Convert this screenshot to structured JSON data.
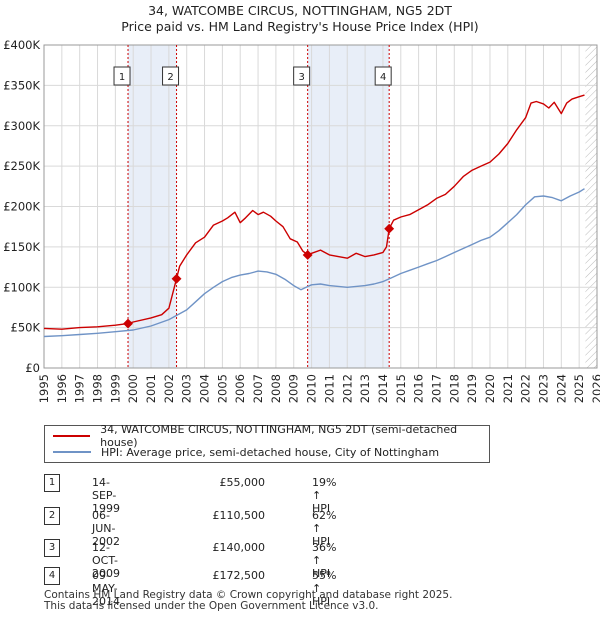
{
  "title": "34, WATCOMBE CIRCUS, NOTTINGHAM, NG5 2DT",
  "subtitle": "Price paid vs. HM Land Registry's House Price Index (HPI)",
  "legend": {
    "property": "34, WATCOMBE CIRCUS, NOTTINGHAM, NG5 2DT (semi-detached house)",
    "hpi": "HPI: Average price, semi-detached house, City of Nottingham"
  },
  "colors": {
    "property": "#cc0000",
    "hpi": "#6f93c6",
    "shade": "#e8eef8",
    "grid": "#d9d9d9"
  },
  "transactions": [
    {
      "num": "1",
      "date": "14-SEP-1999",
      "price": "£55,000",
      "hpi": "19% ↑ HPI"
    },
    {
      "num": "2",
      "date": "06-JUN-2002",
      "price": "£110,500",
      "hpi": "62% ↑ HPI"
    },
    {
      "num": "3",
      "date": "12-OCT-2009",
      "price": "£140,000",
      "hpi": "36% ↑ HPI"
    },
    {
      "num": "4",
      "date": "09-MAY-2014",
      "price": "£172,500",
      "hpi": "55% ↑ HPI"
    }
  ],
  "footer": {
    "line1": "Contains HM Land Registry data © Crown copyright and database right 2025.",
    "line2": "This data is licensed under the Open Government Licence v3.0."
  },
  "chart_data": {
    "type": "line",
    "title": "34, WATCOMBE CIRCUS, NOTTINGHAM, NG5 2DT",
    "subtitle": "Price paid vs. HM Land Registry's House Price Index (HPI)",
    "xlabel": "",
    "ylabel": "",
    "xlim": [
      1995,
      2026
    ],
    "ylim": [
      0,
      400000
    ],
    "yticks": [
      0,
      50000,
      100000,
      150000,
      200000,
      250000,
      300000,
      350000,
      400000
    ],
    "ytick_labels": [
      "£0",
      "£50K",
      "£100K",
      "£150K",
      "£200K",
      "£250K",
      "£300K",
      "£350K",
      "£400K"
    ],
    "xticks": [
      1995,
      1996,
      1997,
      1998,
      1999,
      2000,
      2001,
      2002,
      2003,
      2004,
      2005,
      2006,
      2007,
      2008,
      2009,
      2010,
      2011,
      2012,
      2013,
      2014,
      2015,
      2016,
      2017,
      2018,
      2019,
      2020,
      2021,
      2022,
      2023,
      2024,
      2025,
      2026
    ],
    "grid": true,
    "series": [
      {
        "name": "34, WATCOMBE CIRCUS, NOTTINGHAM, NG5 2DT (semi-detached house)",
        "x": [
          1995.0,
          1996.0,
          1997.0,
          1998.0,
          1999.0,
          1999.7,
          2000.0,
          2001.0,
          2001.6,
          2002.0,
          2002.43,
          2002.6,
          2003.0,
          2003.5,
          2004.0,
          2004.5,
          2005.0,
          2005.3,
          2005.7,
          2006.0,
          2006.3,
          2006.7,
          2007.0,
          2007.3,
          2007.7,
          2008.0,
          2008.4,
          2008.8,
          2009.2,
          2009.5,
          2009.78,
          2010.0,
          2010.5,
          2011.0,
          2011.5,
          2012.0,
          2012.5,
          2013.0,
          2013.5,
          2014.0,
          2014.2,
          2014.35,
          2014.6,
          2015.0,
          2015.5,
          2016.0,
          2016.5,
          2017.0,
          2017.5,
          2018.0,
          2018.5,
          2019.0,
          2019.5,
          2020.0,
          2020.5,
          2021.0,
          2021.5,
          2022.0,
          2022.3,
          2022.6,
          2023.0,
          2023.3,
          2023.6,
          2024.0,
          2024.3,
          2024.6,
          2025.0,
          2025.3
        ],
        "values": [
          49000,
          48000,
          50000,
          51000,
          53000,
          55000,
          57000,
          62000,
          66000,
          74000,
          110500,
          126000,
          140000,
          155000,
          162000,
          177000,
          182000,
          186000,
          193000,
          180000,
          186000,
          195000,
          190000,
          193000,
          188000,
          182000,
          175000,
          160000,
          156000,
          145000,
          140000,
          142000,
          146000,
          140000,
          138000,
          136000,
          142000,
          138000,
          140000,
          143000,
          150000,
          172500,
          183000,
          187000,
          190000,
          196000,
          202000,
          210000,
          215000,
          225000,
          237000,
          245000,
          250000,
          255000,
          265000,
          278000,
          295000,
          310000,
          328000,
          330000,
          327000,
          322000,
          329000,
          315000,
          328000,
          333000,
          336000,
          338000
        ]
      },
      {
        "name": "HPI: Average price, semi-detached house, City of Nottingham",
        "x": [
          1995.0,
          1996.0,
          1997.0,
          1998.0,
          1999.0,
          2000.0,
          2001.0,
          2002.0,
          2003.0,
          2003.5,
          2004.0,
          2004.5,
          2005.0,
          2005.5,
          2006.0,
          2006.5,
          2007.0,
          2007.5,
          2008.0,
          2008.5,
          2009.0,
          2009.4,
          2009.8,
          2010.0,
          2010.5,
          2011.0,
          2011.5,
          2012.0,
          2012.5,
          2013.0,
          2013.5,
          2014.0,
          2014.5,
          2015.0,
          2015.5,
          2016.0,
          2016.5,
          2017.0,
          2017.5,
          2018.0,
          2018.5,
          2019.0,
          2019.5,
          2020.0,
          2020.5,
          2021.0,
          2021.5,
          2022.0,
          2022.5,
          2023.0,
          2023.5,
          2024.0,
          2024.5,
          2025.0,
          2025.3
        ],
        "values": [
          39000,
          40000,
          41500,
          43000,
          45000,
          47000,
          52000,
          60000,
          72000,
          82000,
          92000,
          100000,
          107000,
          112000,
          115000,
          117000,
          120000,
          119000,
          116000,
          110000,
          102000,
          97000,
          101000,
          103000,
          104000,
          102000,
          101000,
          100000,
          101000,
          102000,
          104000,
          107000,
          112000,
          117000,
          121000,
          125000,
          129000,
          133000,
          138000,
          143000,
          148000,
          153000,
          158000,
          162000,
          170000,
          180000,
          190000,
          202000,
          212000,
          213000,
          211000,
          207000,
          213000,
          218000,
          222000
        ]
      }
    ],
    "annotations": [
      {
        "label": "1",
        "x": 1999.71,
        "y": 55000
      },
      {
        "label": "2",
        "x": 2002.43,
        "y": 110500
      },
      {
        "label": "3",
        "x": 2009.78,
        "y": 140000
      },
      {
        "label": "4",
        "x": 2014.35,
        "y": 172500
      }
    ],
    "shaded_ranges": [
      [
        1999.71,
        2002.43
      ],
      [
        2009.78,
        2014.35
      ]
    ]
  }
}
